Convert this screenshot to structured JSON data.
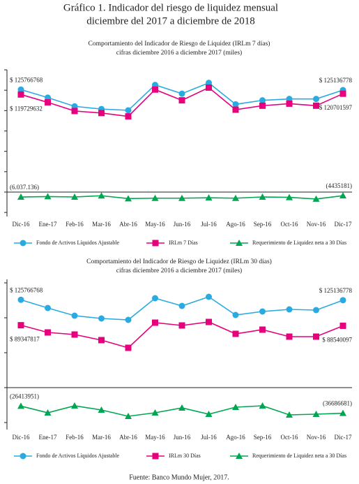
{
  "title": [
    "Gráfico 1. Indicador del riesgo de liquidez mensual",
    "diciembre del 2017 a diciembre de 2018"
  ],
  "source": "Fuente: Banco Mundo Mujer, 2017.",
  "chart_data": [
    {
      "type": "line",
      "title": "Comportamiento del Indicador de Riesgo de Liquidez (IRLm 7 días)",
      "subtitle": "cifras diciembre 2016 a diciembre 2017 (miles)",
      "categories": [
        "Dic-16",
        "Ene-17",
        "Feb-16",
        "Mar-16",
        "Abr-16",
        "May-16",
        "Jun-16",
        "Jul-16",
        "Ago-16",
        "Sep-16",
        "Oct-16",
        "Nov-16",
        "Dic-17"
      ],
      "ylim": [
        -30000000,
        150000000
      ],
      "yticks": [
        -25000000,
        0,
        25000000,
        50000000,
        75000000,
        100000000,
        125000000,
        150000000
      ],
      "grid": false,
      "series": [
        {
          "name": "Fondo de Activos Líquidos Ajustable",
          "color": "#29abe2",
          "marker": "circle",
          "values": [
            125766768,
            115900000,
            105200000,
            101900000,
            100300000,
            131500000,
            120800000,
            134000000,
            107700000,
            112600000,
            114300000,
            114300000,
            125136778
          ],
          "value_labels": [
            "$ 125766768",
            null,
            null,
            null,
            null,
            null,
            null,
            null,
            null,
            null,
            null,
            null,
            "$ 125136778"
          ]
        },
        {
          "name": "IRLm 7 Días",
          "color": "#e6007e",
          "marker": "square",
          "values": [
            119729632,
            110100000,
            99500000,
            97000000,
            92900000,
            125800000,
            112600000,
            128200000,
            101100000,
            106000000,
            108500000,
            106000000,
            120701597
          ],
          "value_labels": [
            "$ 119729632",
            null,
            null,
            null,
            null,
            null,
            null,
            null,
            null,
            null,
            null,
            null,
            "$ 120701597"
          ]
        },
        {
          "name": "Requerimiento de Liquidez neta a 30 Días",
          "color": "#00a651",
          "marker": "triangle",
          "values": [
            -6037136,
            -5500000,
            -6000000,
            -4500000,
            -8000000,
            -7500000,
            -7500000,
            -7000000,
            -7500000,
            -6000000,
            -6500000,
            -8500000,
            -4435181
          ],
          "value_labels": [
            "(6.037.136)",
            null,
            null,
            null,
            null,
            null,
            null,
            null,
            null,
            null,
            null,
            null,
            "(4435181)"
          ]
        }
      ]
    },
    {
      "type": "line",
      "title": "Comportamiento del Indicador de Riesgo de Liquidez (IRLm 30 días)",
      "subtitle": "cifras diciembre 2016 a diciembre 2017 (miles)",
      "categories": [
        "Dic-16",
        "Ene-17",
        "Feb-16",
        "Mar-16",
        "Abr-16",
        "May-16",
        "Jun-16",
        "Jul-16",
        "Ago-16",
        "Sep-16",
        "Oct-16",
        "Nov-16",
        "Dic-17"
      ],
      "ylim": [
        -60000000,
        155000000
      ],
      "yticks": [
        -50000000,
        0,
        50000000,
        100000000,
        150000000
      ],
      "grid": false,
      "series": [
        {
          "name": "Fondo de Activos Líquidos Ajustable",
          "color": "#29abe2",
          "marker": "circle",
          "values": [
            125766768,
            114000000,
            103000000,
            99000000,
            97000000,
            128000000,
            117000000,
            130000000,
            104000000,
            109000000,
            112000000,
            111000000,
            125136778
          ],
          "value_labels": [
            "$ 125766768",
            null,
            null,
            null,
            null,
            null,
            null,
            null,
            null,
            null,
            null,
            null,
            "$ 125136778"
          ]
        },
        {
          "name": "IRLm 30 Días",
          "color": "#e6007e",
          "marker": "square",
          "values": [
            89347817,
            79000000,
            76000000,
            68000000,
            57000000,
            93000000,
            89000000,
            94000000,
            77000000,
            83000000,
            73000000,
            73000000,
            88540097
          ],
          "value_labels": [
            "$ 89347817",
            null,
            null,
            null,
            null,
            null,
            null,
            null,
            null,
            null,
            null,
            null,
            "$ 88540097"
          ]
        },
        {
          "name": "Requerimiento de Liquidez neta a 30 Días",
          "color": "#00a651",
          "marker": "triangle",
          "values": [
            -26413951,
            -36000000,
            -26000000,
            -32000000,
            -41000000,
            -36000000,
            -29000000,
            -38000000,
            -28000000,
            -26000000,
            -39000000,
            -38000000,
            -36686681
          ],
          "value_labels": [
            "(26413951)",
            null,
            null,
            null,
            null,
            null,
            null,
            null,
            null,
            null,
            null,
            null,
            "(36686681)"
          ]
        }
      ]
    }
  ]
}
